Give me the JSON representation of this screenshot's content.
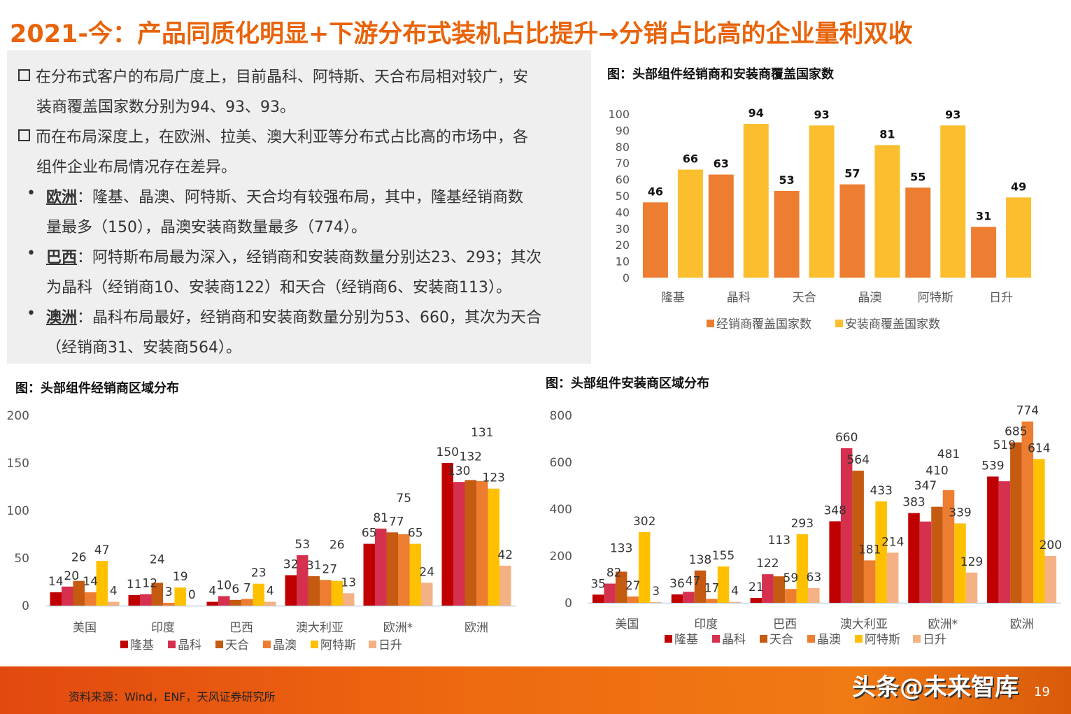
{
  "title": "2021-今：产品同质化明显+下游分布式装机占比提升→分销占比高的企业量利双收",
  "text": {
    "p1_l1": "在分布式客户的布局广度上，目前晶科、阿特斯、天合布局相对较广，安",
    "p1_l2": "装商覆盖国家数分别为94、93、93。",
    "p2_l1": "而在布局深度上，在欧洲、拉美、澳大利亚等分布式占比高的市场中，各",
    "p2_l2": "组件企业布局情况存在差异。",
    "b1_kw": "欧洲",
    "b1_l1": "：隆基、晶澳、阿特斯、天合均有较强布局，其中，隆基经销商数",
    "b1_l2": "量最多（150），晶澳安装商数量最多（774）。",
    "b2_kw": "巴西",
    "b2_l1": "：阿特斯布局最为深入，经销商和安装商数量分别达23、293；其次",
    "b2_l2": "为晶科（经销商10、安装商122）和天合（经销商6、安装商113）。",
    "b3_kw": "澳洲",
    "b3_l1": "：晶科布局最好，经销商和安装商数量分别为53、660，其次为天合",
    "b3_l2": "（经销商31、安装商564）。",
    "bullet": "•"
  },
  "chart_titles": {
    "c1": "图：头部组件经销商和安装商覆盖国家数",
    "c2": "图：头部组件经销商区域分布",
    "c3": "图：头部组件安装商区域分布"
  },
  "chart_data": [
    {
      "type": "bar",
      "title": "图：头部组件经销商和安装商覆盖国家数",
      "categories": [
        "隆基",
        "晶科",
        "天合",
        "晶澳",
        "阿特斯",
        "日升"
      ],
      "series": [
        {
          "name": "经销商覆盖国家数",
          "values": [
            46,
            63,
            53,
            57,
            55,
            31
          ],
          "color": "#ED7D31"
        },
        {
          "name": "安装商覆盖国家数",
          "values": [
            66,
            94,
            93,
            81,
            93,
            49
          ],
          "color": "#FBBE2E"
        }
      ],
      "ylim": [
        0,
        100
      ],
      "yticks": [
        0,
        10,
        20,
        30,
        40,
        50,
        60,
        70,
        80,
        90,
        100
      ],
      "grid": false,
      "legend": "bottom"
    },
    {
      "type": "bar",
      "title": "图：头部组件经销商区域分布",
      "categories": [
        "美国",
        "印度",
        "巴西",
        "澳大利亚",
        "欧洲*",
        "欧洲"
      ],
      "series": [
        {
          "name": "隆基",
          "values": [
            14,
            11,
            4,
            32,
            65,
            150
          ],
          "color": "#C00000"
        },
        {
          "name": "晶科",
          "values": [
            20,
            12,
            10,
            53,
            81,
            130
          ],
          "color": "#D6304F"
        },
        {
          "name": "天合",
          "values": [
            26,
            24,
            6,
            31,
            77,
            132
          ],
          "color": "#C55A11"
        },
        {
          "name": "晶澳",
          "values": [
            14,
            3,
            7,
            27,
            75,
            131
          ],
          "color": "#ED7D31"
        },
        {
          "name": "阿特斯",
          "values": [
            47,
            19,
            23,
            26,
            65,
            123
          ],
          "color": "#FFC000"
        },
        {
          "name": "日升",
          "values": [
            4,
            0,
            4,
            13,
            24,
            42
          ],
          "color": "#F4B183"
        }
      ],
      "ylim": [
        0,
        200
      ],
      "yticks": [
        0,
        50,
        100,
        150,
        200
      ],
      "grid": false,
      "legend": "bottom"
    },
    {
      "type": "bar",
      "title": "图：头部组件安装商区域分布",
      "categories": [
        "美国",
        "印度",
        "巴西",
        "澳大利亚",
        "欧洲*",
        "欧洲"
      ],
      "series": [
        {
          "name": "隆基",
          "values": [
            35,
            36,
            21,
            348,
            383,
            539
          ],
          "color": "#C00000"
        },
        {
          "name": "晶科",
          "values": [
            82,
            47,
            122,
            660,
            347,
            519
          ],
          "color": "#D6304F"
        },
        {
          "name": "天合",
          "values": [
            133,
            138,
            113,
            564,
            410,
            685
          ],
          "color": "#C55A11"
        },
        {
          "name": "晶澳",
          "values": [
            27,
            17,
            59,
            181,
            481,
            774
          ],
          "color": "#ED7D31"
        },
        {
          "name": "阿特斯",
          "values": [
            302,
            155,
            293,
            433,
            339,
            614
          ],
          "color": "#FFC000"
        },
        {
          "name": "日升",
          "values": [
            3,
            4,
            63,
            214,
            129,
            200
          ],
          "color": "#F4B183"
        }
      ],
      "ylim": [
        0,
        800
      ],
      "yticks": [
        0,
        200,
        400,
        600,
        800
      ],
      "grid": false,
      "legend": "bottom"
    }
  ],
  "footer": {
    "source": "资料来源：Wind，ENF，天风证券研究所",
    "watermark": "头条@未来智库",
    "page_number": "19"
  },
  "colors": {
    "title": "#E8630A",
    "footer": "#EE6A10",
    "textbox": "#EFEFEF"
  }
}
